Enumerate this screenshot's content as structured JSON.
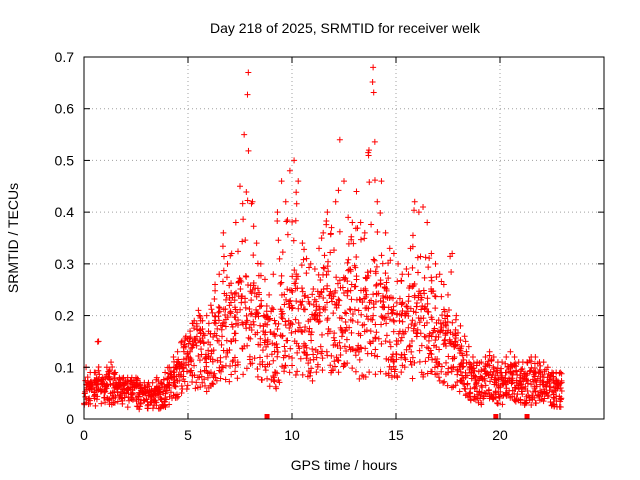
{
  "chart_data": {
    "type": "scatter",
    "title": "Day 218 of 2025, SRMTID for receiver welk",
    "xlabel": "GPS time / hours",
    "ylabel": "SRMTID / TECUs",
    "xlim": [
      0,
      25
    ],
    "ylim": [
      0,
      0.7
    ],
    "xticks": [
      "0",
      "5",
      "10",
      "15",
      "20"
    ],
    "yticks": [
      "0",
      "0.1",
      "0.2",
      "0.3",
      "0.4",
      "0.5",
      "0.6",
      "0.7"
    ],
    "grid": true,
    "marker": "+",
    "color": "#ff0000",
    "series_name": "SRMTID",
    "outage_markers_x": [
      8.8,
      19.8,
      21.3
    ],
    "x": [
      0.0,
      0.2,
      0.4,
      0.6,
      0.8,
      1.0,
      1.2,
      1.4,
      1.6,
      1.8,
      2.0,
      2.2,
      2.4,
      2.6,
      2.8,
      3.0,
      3.2,
      3.4,
      3.6,
      3.8,
      4.0,
      4.2,
      4.4,
      4.6,
      4.8,
      5.0,
      5.2,
      5.4,
      5.6,
      5.8,
      6.0,
      6.2,
      6.4,
      6.6,
      6.8,
      7.0,
      7.2,
      7.4,
      7.6,
      7.8,
      8.0,
      8.2,
      8.4,
      8.6,
      8.8,
      9.0,
      9.2,
      9.4,
      9.6,
      9.8,
      10.0,
      10.2,
      10.4,
      10.6,
      10.8,
      11.0,
      11.2,
      11.4,
      11.6,
      11.8,
      12.0,
      12.2,
      12.4,
      12.6,
      12.8,
      13.0,
      13.2,
      13.4,
      13.6,
      13.8,
      14.0,
      14.2,
      14.4,
      14.6,
      14.8,
      15.0,
      15.2,
      15.4,
      15.6,
      15.8,
      16.0,
      16.2,
      16.4,
      16.6,
      16.8,
      17.0,
      17.2,
      17.4,
      17.6,
      17.8,
      18.0,
      18.2,
      18.4,
      18.6,
      18.8,
      19.0,
      19.2,
      19.4,
      19.6,
      19.8,
      20.0,
      20.2,
      20.4,
      20.6,
      20.8,
      21.0,
      21.2,
      21.4,
      21.6,
      21.8,
      22.0,
      22.2,
      22.4,
      22.6,
      22.8
    ],
    "y_median": [
      0.05,
      0.05,
      0.05,
      0.06,
      0.05,
      0.06,
      0.06,
      0.06,
      0.05,
      0.05,
      0.05,
      0.05,
      0.05,
      0.04,
      0.04,
      0.04,
      0.04,
      0.04,
      0.04,
      0.05,
      0.06,
      0.07,
      0.08,
      0.09,
      0.1,
      0.11,
      0.12,
      0.13,
      0.12,
      0.11,
      0.12,
      0.13,
      0.15,
      0.17,
      0.16,
      0.16,
      0.17,
      0.18,
      0.19,
      0.18,
      0.17,
      0.17,
      0.16,
      0.15,
      0.14,
      0.13,
      0.13,
      0.14,
      0.15,
      0.17,
      0.18,
      0.18,
      0.17,
      0.16,
      0.16,
      0.17,
      0.18,
      0.19,
      0.2,
      0.19,
      0.18,
      0.18,
      0.19,
      0.2,
      0.19,
      0.18,
      0.17,
      0.18,
      0.19,
      0.2,
      0.19,
      0.18,
      0.17,
      0.16,
      0.16,
      0.15,
      0.15,
      0.16,
      0.17,
      0.17,
      0.16,
      0.16,
      0.17,
      0.18,
      0.17,
      0.16,
      0.15,
      0.14,
      0.13,
      0.12,
      0.1,
      0.09,
      0.08,
      0.07,
      0.06,
      0.06,
      0.07,
      0.07,
      0.07,
      0.06,
      0.06,
      0.06,
      0.07,
      0.07,
      0.06,
      0.06,
      0.06,
      0.06,
      0.06,
      0.06,
      0.06,
      0.05,
      0.05,
      0.05,
      0.05
    ],
    "y_peak": [
      0.1,
      0.09,
      0.09,
      0.15,
      0.08,
      0.1,
      0.11,
      0.09,
      0.08,
      0.08,
      0.08,
      0.08,
      0.08,
      0.07,
      0.07,
      0.07,
      0.07,
      0.08,
      0.07,
      0.09,
      0.1,
      0.12,
      0.13,
      0.15,
      0.16,
      0.17,
      0.19,
      0.21,
      0.19,
      0.2,
      0.22,
      0.26,
      0.28,
      0.36,
      0.3,
      0.32,
      0.38,
      0.45,
      0.55,
      0.67,
      0.42,
      0.34,
      0.3,
      0.27,
      0.24,
      0.28,
      0.4,
      0.46,
      0.42,
      0.48,
      0.5,
      0.46,
      0.34,
      0.31,
      0.3,
      0.29,
      0.33,
      0.36,
      0.4,
      0.37,
      0.42,
      0.54,
      0.46,
      0.39,
      0.38,
      0.44,
      0.38,
      0.36,
      0.52,
      0.68,
      0.42,
      0.46,
      0.36,
      0.33,
      0.32,
      0.3,
      0.28,
      0.29,
      0.33,
      0.42,
      0.4,
      0.41,
      0.38,
      0.32,
      0.3,
      0.28,
      0.26,
      0.24,
      0.32,
      0.2,
      0.18,
      0.16,
      0.14,
      0.12,
      0.11,
      0.11,
      0.12,
      0.13,
      0.12,
      0.11,
      0.11,
      0.12,
      0.13,
      0.12,
      0.11,
      0.11,
      0.11,
      0.12,
      0.12,
      0.11,
      0.11,
      0.1,
      0.09,
      0.09,
      0.09
    ]
  }
}
